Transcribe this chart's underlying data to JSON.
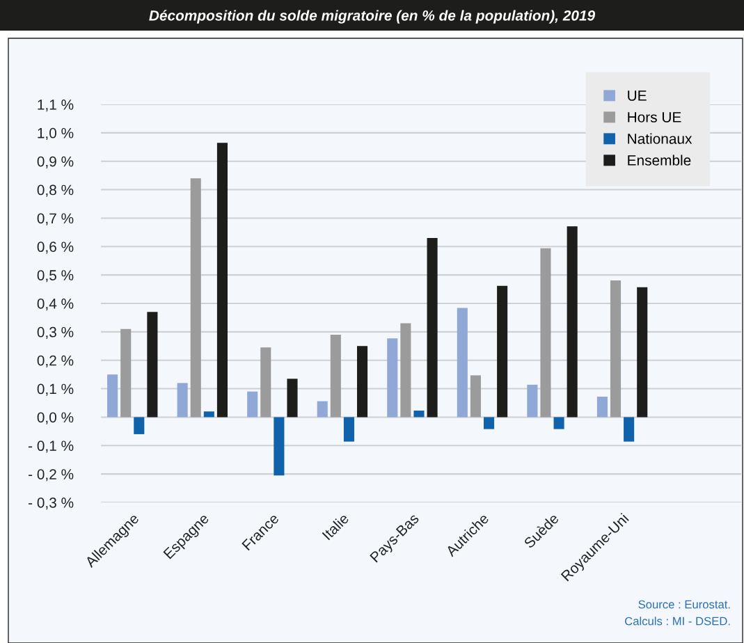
{
  "chart_data": {
    "type": "bar",
    "title": "Décomposition du solde migratoire (en % de la population), 2019",
    "categories": [
      "Allemagne",
      "Espagne",
      "France",
      "Italie",
      "Pays-Bas",
      "Autriche",
      "Suède",
      "Royaume-Uni"
    ],
    "series": [
      {
        "name": "UE",
        "color": "#8fa8d6",
        "values": [
          0.15,
          0.12,
          0.09,
          0.056,
          0.277,
          0.384,
          0.114,
          0.072
        ]
      },
      {
        "name": "Hors UE",
        "color": "#9a9b9a",
        "values": [
          0.31,
          0.84,
          0.245,
          0.29,
          0.33,
          0.147,
          0.594,
          0.481
        ]
      },
      {
        "name": "Nationaux",
        "color": "#1062ab",
        "values": [
          -0.06,
          0.02,
          -0.205,
          -0.086,
          0.023,
          -0.042,
          -0.042,
          -0.086
        ]
      },
      {
        "name": "Ensemble",
        "color": "#1d1d1b",
        "values": [
          0.37,
          0.965,
          0.135,
          0.25,
          0.63,
          0.462,
          0.671,
          0.457
        ]
      }
    ],
    "ylim": [
      -0.3,
      1.1
    ],
    "yticks": [
      {
        "value": -0.3,
        "label": "- 0,3 %"
      },
      {
        "value": -0.2,
        "label": "- 0,2 %"
      },
      {
        "value": -0.1,
        "label": "- 0,1 %"
      },
      {
        "value": 0,
        "label": "0,0 %"
      },
      {
        "value": 0.1,
        "label": "0,1 %"
      },
      {
        "value": 0.2,
        "label": "0,2 %"
      },
      {
        "value": 0.3,
        "label": "0,3 %"
      },
      {
        "value": 0.4,
        "label": "0,4 %"
      },
      {
        "value": 0.5,
        "label": "0,5 %"
      },
      {
        "value": 0.6,
        "label": "0,6 %"
      },
      {
        "value": 0.7,
        "label": "0,7 %"
      },
      {
        "value": 0.8,
        "label": "0,8 %"
      },
      {
        "value": 0.9,
        "label": "0,9 %"
      },
      {
        "value": 1.0,
        "label": "1,0 %"
      },
      {
        "value": 1.1,
        "label": "1,1 %"
      }
    ],
    "grid": "y",
    "legend": "top right",
    "annotations": [
      "Source : Eurostat.",
      "Calculs : MI - DSED."
    ]
  }
}
